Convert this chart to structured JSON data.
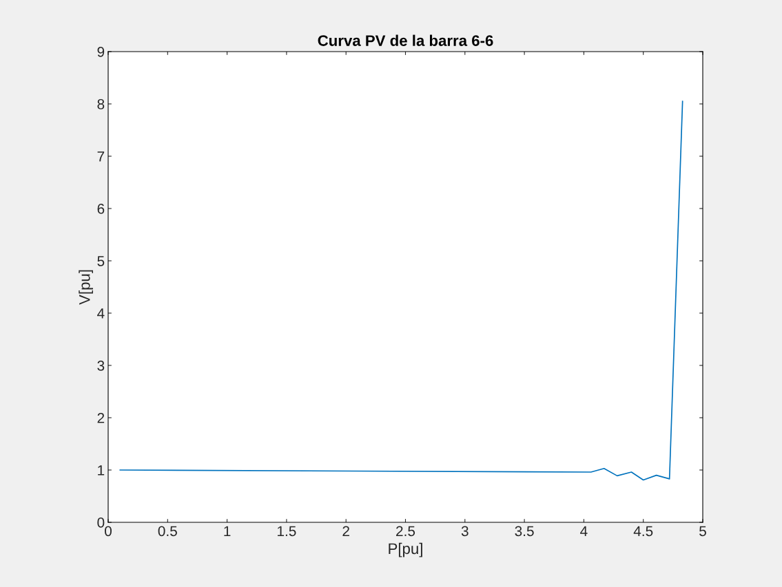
{
  "chart_data": {
    "type": "line",
    "title": "Curva PV de la barra 6-6",
    "xlabel": "P[pu]",
    "ylabel": "V[pu]",
    "x": [
      0.1,
      4.06,
      4.17,
      4.28,
      4.4,
      4.5,
      4.61,
      4.72,
      4.83
    ],
    "series": [
      {
        "color": "#0072bd",
        "values": [
          1.0,
          0.96,
          1.03,
          0.89,
          0.96,
          0.81,
          0.9,
          0.83,
          8.05
        ]
      }
    ],
    "xlim": [
      0,
      5
    ],
    "xticks": [
      0,
      0.5,
      1,
      1.5,
      2,
      2.5,
      3,
      3.5,
      4,
      4.5,
      5
    ],
    "ylim": [
      0,
      9
    ],
    "yticks": [
      0,
      1,
      2,
      3,
      4,
      5,
      6,
      7,
      8,
      9
    ],
    "grid": false,
    "marker": "none",
    "line_style": "solid"
  }
}
